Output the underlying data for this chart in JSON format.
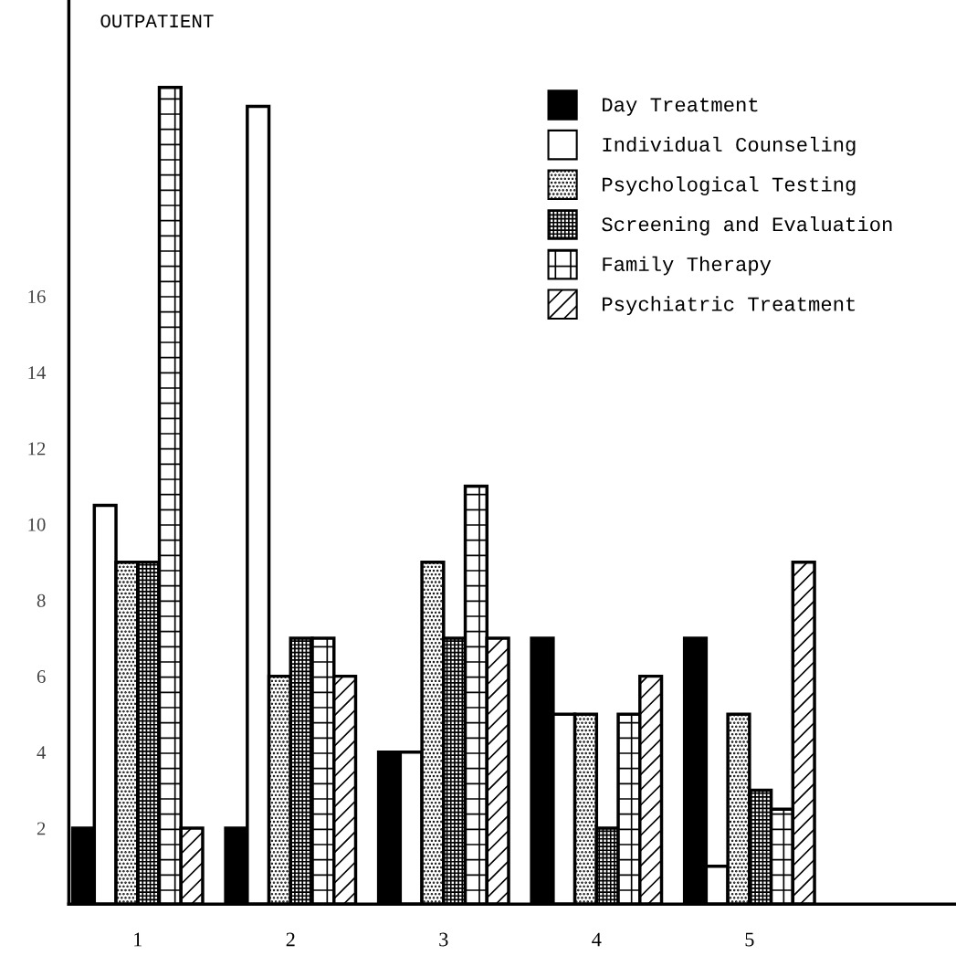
{
  "chart_data": {
    "type": "bar",
    "title": "OUTPATIENT",
    "categories": [
      "1",
      "2",
      "3",
      "4",
      "5"
    ],
    "series": [
      {
        "name": "Day Treatment",
        "color": "#000000",
        "values": [
          2,
          2,
          4,
          7,
          7
        ]
      },
      {
        "name": "Individual Counseling",
        "color": "#ffffff",
        "values": [
          10.5,
          21,
          4,
          5,
          1
        ]
      },
      {
        "name": "Psychological Testing",
        "color": "#000000",
        "values": [
          9,
          6,
          9,
          5,
          5
        ]
      },
      {
        "name": "Screening and Evaluation",
        "color": "#000000",
        "values": [
          9,
          7,
          7,
          2,
          3
        ]
      },
      {
        "name": "Family Therapy",
        "color": "#000000",
        "values": [
          21.5,
          7,
          11,
          5,
          2.5
        ]
      },
      {
        "name": "Psychiatric Treatment",
        "color": "#000000",
        "values": [
          2,
          6,
          7,
          6,
          9
        ]
      }
    ],
    "ylim": [
      0,
      23.8
    ],
    "yticks": [
      2,
      4,
      6,
      8,
      10,
      12,
      14,
      16
    ],
    "grid": false,
    "legend": "top right"
  }
}
